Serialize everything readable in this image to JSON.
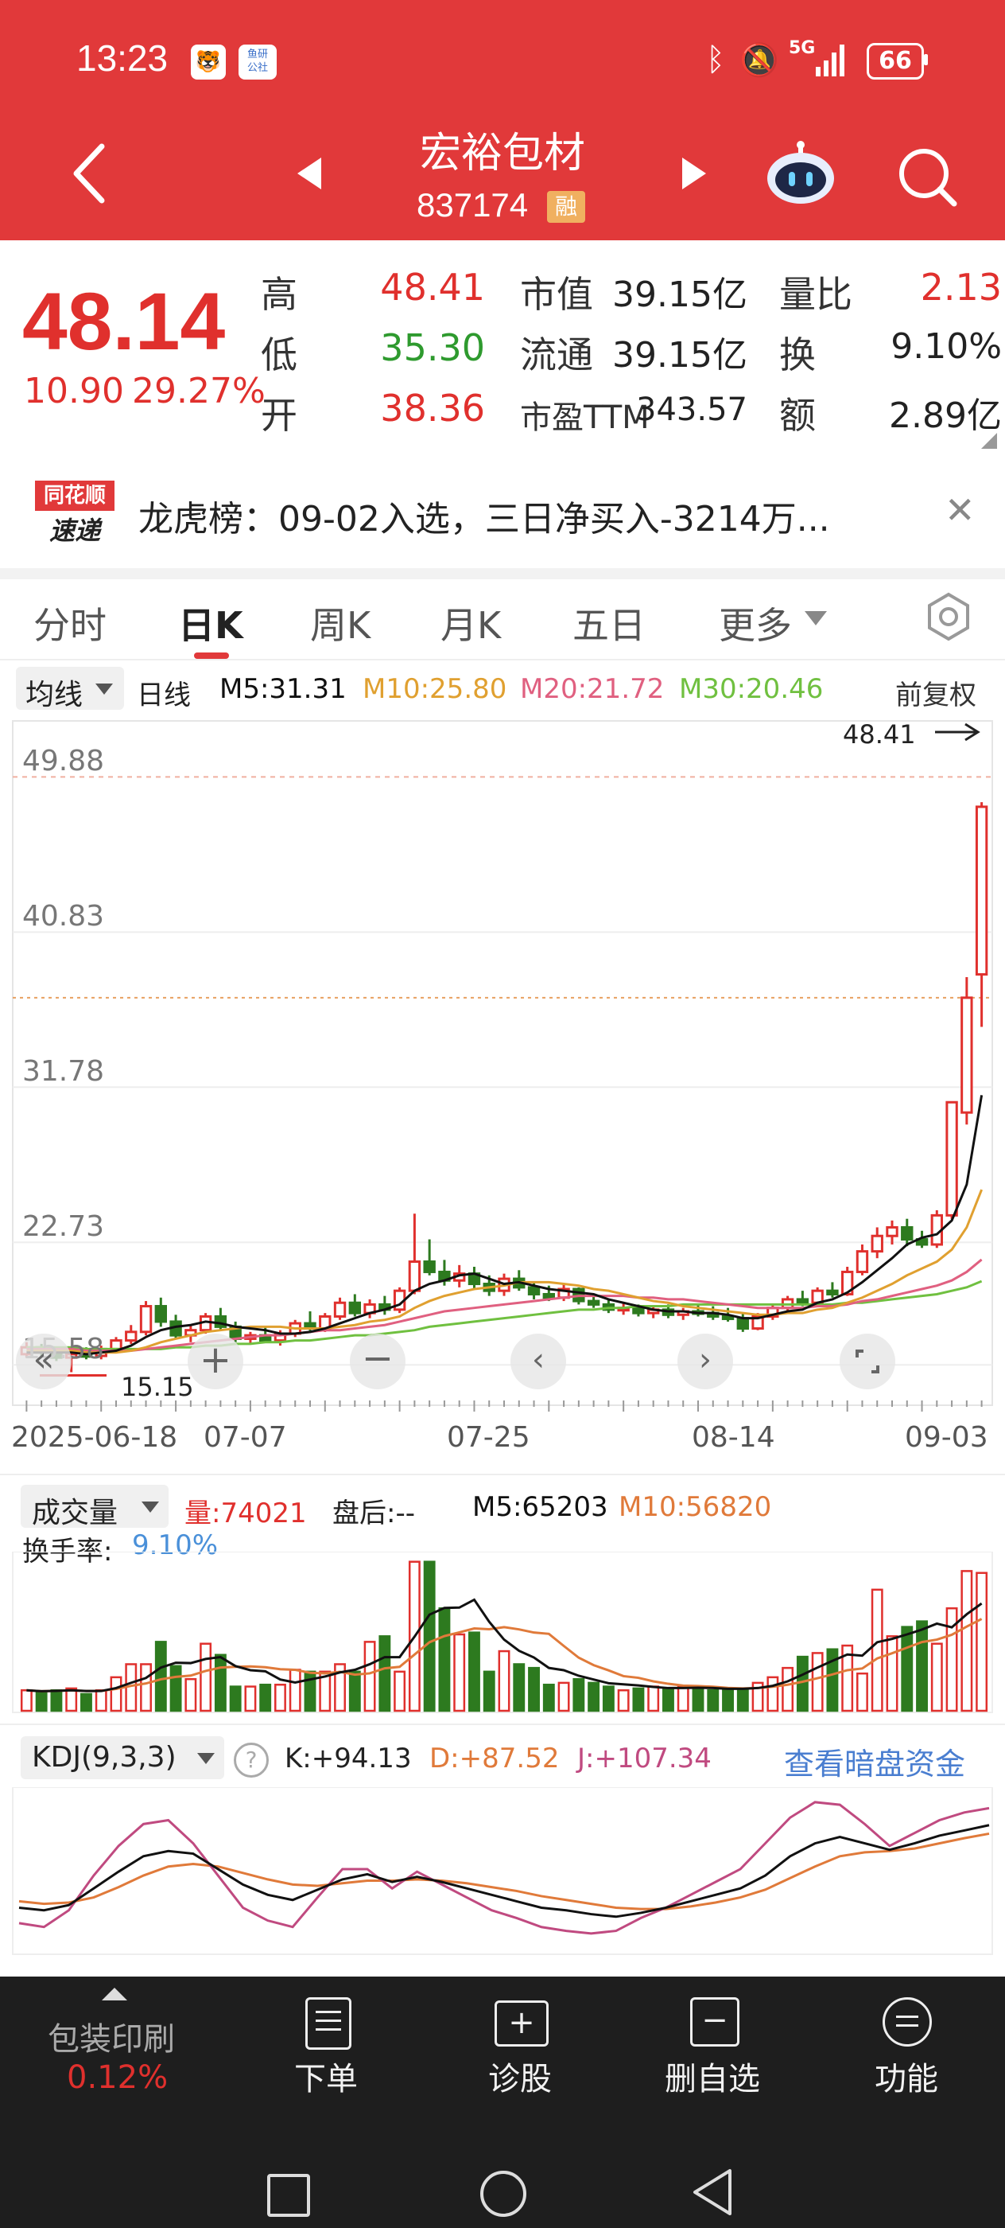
{
  "status_bar": {
    "time": "13:23",
    "notif1": "",
    "notif2": "鱼研\n公社",
    "network": "5G",
    "battery": "66"
  },
  "header": {
    "name": "宏裕包材",
    "code": "837174",
    "badge": "融"
  },
  "quote": {
    "price": "48.14",
    "change": "10.90",
    "change_pct": "29.27%",
    "labels": {
      "high": "高",
      "low": "低",
      "open": "开",
      "mktcap": "市值",
      "float": "流通",
      "pe": "市盈TTM",
      "vol_ratio": "量比",
      "turnover": "换",
      "amount": "额"
    },
    "high": "48.41",
    "low": "35.30",
    "open": "38.36",
    "mktcap": "39.15亿",
    "float": "39.15亿",
    "pe": "343.57",
    "vol_ratio": "2.13",
    "turnover": "9.10%",
    "amount": "2.89亿"
  },
  "news": {
    "logo_top": "同花顺",
    "logo_bottom": "速递",
    "text": "龙虎榜：09-02入选，三日净买入-3214万..."
  },
  "tabs": [
    {
      "label": "分时"
    },
    {
      "label": "日K"
    },
    {
      "label": "周K"
    },
    {
      "label": "月K"
    },
    {
      "label": "五日"
    },
    {
      "label": "更多"
    }
  ],
  "ma_bar": {
    "selector": "均线",
    "period": "日线",
    "m5": "M5:31.31",
    "m10": "M10:25.80",
    "m20": "M20:21.72",
    "m30": "M30:20.46",
    "adjust": "前复权"
  },
  "colors": {
    "up": "#e0302d",
    "down": "#2d7a1f",
    "m5": "#111111",
    "m10": "#e0a030",
    "m20": "#e06080",
    "m30": "#70c040",
    "kdj_k": "#111111",
    "kdj_d": "#e07a3a",
    "kdj_j": "#c04a80"
  },
  "chart_data": {
    "type": "candlestick",
    "y_ticks": [
      "49.88",
      "40.83",
      "31.78",
      "22.73",
      "15.58"
    ],
    "ylim": [
      13.5,
      52.5
    ],
    "x_ticks": [
      "2025-06-18",
      "07-07",
      "07-25",
      "08-14",
      "09-03"
    ],
    "max_label": "48.41",
    "min_label": "15.15",
    "candles": [
      [
        16.2,
        16.9,
        16.0,
        16.6
      ],
      [
        16.6,
        16.8,
        16.1,
        16.3
      ],
      [
        16.3,
        16.6,
        15.8,
        16.0
      ],
      [
        16.0,
        16.5,
        15.15,
        16.2
      ],
      [
        16.2,
        16.6,
        15.9,
        16.1
      ],
      [
        16.1,
        16.7,
        15.9,
        16.5
      ],
      [
        16.5,
        17.2,
        16.3,
        17.0
      ],
      [
        17.0,
        17.9,
        16.8,
        17.5
      ],
      [
        17.5,
        19.3,
        17.3,
        19.0
      ],
      [
        19.0,
        19.5,
        17.8,
        18.1
      ],
      [
        18.1,
        18.5,
        17.1,
        17.3
      ],
      [
        17.3,
        17.9,
        16.9,
        17.6
      ],
      [
        17.6,
        18.6,
        17.4,
        18.4
      ],
      [
        18.4,
        18.9,
        17.6,
        17.8
      ],
      [
        17.8,
        18.1,
        16.9,
        17.1
      ],
      [
        17.1,
        17.5,
        16.8,
        17.3
      ],
      [
        17.3,
        17.8,
        16.9,
        17.0
      ],
      [
        17.0,
        17.6,
        16.7,
        17.4
      ],
      [
        17.4,
        18.2,
        17.2,
        18.0
      ],
      [
        18.0,
        18.7,
        17.5,
        17.7
      ],
      [
        17.7,
        18.6,
        17.5,
        18.4
      ],
      [
        18.4,
        19.5,
        18.2,
        19.2
      ],
      [
        19.2,
        19.7,
        18.4,
        18.6
      ],
      [
        18.6,
        19.4,
        18.3,
        19.1
      ],
      [
        19.1,
        19.6,
        18.5,
        18.8
      ],
      [
        18.8,
        20.1,
        18.6,
        19.9
      ],
      [
        19.9,
        24.4,
        19.7,
        21.6
      ],
      [
        21.6,
        22.9,
        20.8,
        21.0
      ],
      [
        21.0,
        21.7,
        20.2,
        20.5
      ],
      [
        20.5,
        21.4,
        20.1,
        20.9
      ],
      [
        20.9,
        21.3,
        20.0,
        20.3
      ],
      [
        20.3,
        20.8,
        19.6,
        19.9
      ],
      [
        19.9,
        20.9,
        19.6,
        20.6
      ],
      [
        20.6,
        21.1,
        19.9,
        20.1
      ],
      [
        20.1,
        20.4,
        19.4,
        19.7
      ],
      [
        19.7,
        20.2,
        19.3,
        19.5
      ],
      [
        19.5,
        20.3,
        19.3,
        20.0
      ],
      [
        20.0,
        20.1,
        19.1,
        19.3
      ],
      [
        19.3,
        19.7,
        18.9,
        19.1
      ],
      [
        19.1,
        19.4,
        18.6,
        18.8
      ],
      [
        18.8,
        19.2,
        18.5,
        18.9
      ],
      [
        18.9,
        19.1,
        18.4,
        18.6
      ],
      [
        18.6,
        19.0,
        18.3,
        18.8
      ],
      [
        18.8,
        19.1,
        18.3,
        18.5
      ],
      [
        18.5,
        18.9,
        18.2,
        18.7
      ],
      [
        18.7,
        19.1,
        18.4,
        18.6
      ],
      [
        18.6,
        19.0,
        18.2,
        18.4
      ],
      [
        18.4,
        18.9,
        18.1,
        18.3
      ],
      [
        18.3,
        18.6,
        17.5,
        17.7
      ],
      [
        17.7,
        18.6,
        17.6,
        18.4
      ],
      [
        18.4,
        19.1,
        18.2,
        18.9
      ],
      [
        18.9,
        19.6,
        18.7,
        19.4
      ],
      [
        19.4,
        19.9,
        19.0,
        19.2
      ],
      [
        19.2,
        20.1,
        19.0,
        19.9
      ],
      [
        19.9,
        20.4,
        19.5,
        19.7
      ],
      [
        19.7,
        21.3,
        19.6,
        21.0
      ],
      [
        21.0,
        22.6,
        20.8,
        22.2
      ],
      [
        22.2,
        23.6,
        21.8,
        23.1
      ],
      [
        23.1,
        24.0,
        22.6,
        23.6
      ],
      [
        23.6,
        24.1,
        22.5,
        22.9
      ],
      [
        22.9,
        23.4,
        22.4,
        22.6
      ],
      [
        22.6,
        24.6,
        22.4,
        24.3
      ],
      [
        24.3,
        30.9,
        24.1,
        30.9
      ],
      [
        30.3,
        38.2,
        29.6,
        37.0
      ],
      [
        38.36,
        48.41,
        35.3,
        48.14
      ]
    ],
    "ma5": [
      16.3,
      16.3,
      16.3,
      16.3,
      16.2,
      16.3,
      16.4,
      16.7,
      17.2,
      17.6,
      17.8,
      17.9,
      18.1,
      18.0,
      17.8,
      17.7,
      17.6,
      17.4,
      17.4,
      17.5,
      17.7,
      18.0,
      18.3,
      18.6,
      18.8,
      19.1,
      19.9,
      20.3,
      20.5,
      20.8,
      20.9,
      20.6,
      20.3,
      20.4,
      20.2,
      20.0,
      19.9,
      19.8,
      19.7,
      19.4,
      19.2,
      19.0,
      18.8,
      18.7,
      18.7,
      18.6,
      18.6,
      18.5,
      18.3,
      18.3,
      18.5,
      18.7,
      18.8,
      19.2,
      19.4,
      19.8,
      20.4,
      21.1,
      21.8,
      22.6,
      23.0,
      23.2,
      24.0,
      26.1,
      31.31
    ],
    "ma10": [
      16.4,
      16.4,
      16.4,
      16.4,
      16.3,
      16.3,
      16.3,
      16.4,
      16.6,
      16.9,
      17.1,
      17.3,
      17.5,
      17.6,
      17.7,
      17.8,
      17.8,
      17.8,
      17.7,
      17.7,
      17.7,
      17.8,
      17.9,
      18.1,
      18.2,
      18.4,
      18.9,
      19.3,
      19.6,
      19.8,
      20.0,
      20.1,
      20.2,
      20.4,
      20.4,
      20.4,
      20.3,
      20.2,
      20.0,
      19.9,
      19.7,
      19.5,
      19.3,
      19.2,
      19.0,
      18.9,
      18.8,
      18.7,
      18.6,
      18.5,
      18.5,
      18.6,
      18.6,
      18.8,
      18.9,
      19.2,
      19.5,
      19.9,
      20.3,
      20.8,
      21.2,
      21.6,
      22.3,
      23.6,
      25.8
    ],
    "ma20": [
      16.5,
      16.5,
      16.5,
      16.5,
      16.4,
      16.4,
      16.4,
      16.4,
      16.5,
      16.6,
      16.7,
      16.8,
      16.9,
      17.0,
      17.1,
      17.2,
      17.3,
      17.3,
      17.4,
      17.5,
      17.6,
      17.6,
      17.7,
      17.8,
      17.9,
      18.1,
      18.3,
      18.5,
      18.7,
      18.8,
      18.9,
      19.0,
      19.1,
      19.2,
      19.3,
      19.4,
      19.5,
      19.6,
      19.6,
      19.6,
      19.6,
      19.5,
      19.5,
      19.4,
      19.4,
      19.3,
      19.2,
      19.1,
      19.0,
      18.9,
      18.9,
      18.9,
      18.9,
      19.0,
      19.0,
      19.1,
      19.3,
      19.4,
      19.6,
      19.8,
      20.0,
      20.2,
      20.5,
      21.0,
      21.72
    ],
    "ma30": [
      16.6,
      16.6,
      16.6,
      16.6,
      16.5,
      16.5,
      16.5,
      16.5,
      16.5,
      16.5,
      16.6,
      16.6,
      16.7,
      16.7,
      16.8,
      16.8,
      16.9,
      16.9,
      17.0,
      17.0,
      17.1,
      17.2,
      17.3,
      17.3,
      17.4,
      17.5,
      17.6,
      17.8,
      17.9,
      18.0,
      18.1,
      18.2,
      18.3,
      18.4,
      18.5,
      18.6,
      18.7,
      18.8,
      18.8,
      18.9,
      18.9,
      19.0,
      19.0,
      19.0,
      19.1,
      19.1,
      19.1,
      19.1,
      19.1,
      19.1,
      19.1,
      19.1,
      19.1,
      19.1,
      19.1,
      19.2,
      19.2,
      19.3,
      19.4,
      19.5,
      19.6,
      19.7,
      19.9,
      20.1,
      20.46
    ]
  },
  "volume_panel": {
    "selector": "成交量",
    "vol": "量:74021",
    "after": "盘后:--",
    "m5": "M5:65203",
    "m10": "M10:56820",
    "turnover_label": "换手率:",
    "turnover": "9.10%",
    "volumes": [
      11,
      10,
      11,
      12,
      9,
      11,
      18,
      25,
      25,
      37,
      24,
      17,
      36,
      30,
      13,
      13,
      14,
      14,
      22,
      21,
      21,
      25,
      21,
      37,
      40,
      21,
      80,
      80,
      55,
      41,
      42,
      21,
      32,
      25,
      23,
      14,
      15,
      17,
      15,
      13,
      11,
      12,
      13,
      12,
      13,
      12,
      11,
      11,
      12,
      15,
      18,
      23,
      29,
      31,
      33,
      35,
      20,
      65,
      40,
      45,
      48,
      36,
      55,
      75,
      74
    ]
  },
  "kdj_panel": {
    "selector": "KDJ(9,3,3)",
    "help": "?",
    "k": "K:+94.13",
    "d": "D:+87.52",
    "j": "J:+107.34",
    "link": "查看暗盘资金",
    "k_vals": [
      30,
      28,
      32,
      45,
      58,
      70,
      74,
      72,
      60,
      48,
      40,
      36,
      44,
      52,
      56,
      50,
      54,
      50,
      45,
      40,
      35,
      30,
      28,
      25,
      23,
      26,
      30,
      35,
      40,
      45,
      55,
      70,
      80,
      85,
      80,
      75,
      80,
      86,
      90,
      94.13
    ],
    "d_vals": [
      35,
      33,
      34,
      38,
      46,
      55,
      62,
      64,
      62,
      57,
      52,
      48,
      47,
      49,
      51,
      51,
      52,
      51,
      49,
      46,
      43,
      39,
      36,
      33,
      30,
      29,
      29,
      31,
      34,
      38,
      44,
      53,
      62,
      70,
      73,
      74,
      76,
      80,
      84,
      87.52
    ],
    "j_vals": [
      18,
      15,
      28,
      55,
      78,
      95,
      98,
      80,
      55,
      30,
      20,
      15,
      38,
      60,
      60,
      45,
      58,
      48,
      38,
      28,
      22,
      15,
      12,
      10,
      12,
      22,
      30,
      40,
      50,
      60,
      80,
      100,
      112,
      110,
      95,
      78,
      88,
      98,
      104,
      107.34
    ]
  },
  "toolbar": {
    "sector": "包装印刷",
    "sector_pct": "0.12%",
    "order": "下单",
    "diagnose": "诊股",
    "remove": "删自选",
    "functions": "功能"
  }
}
